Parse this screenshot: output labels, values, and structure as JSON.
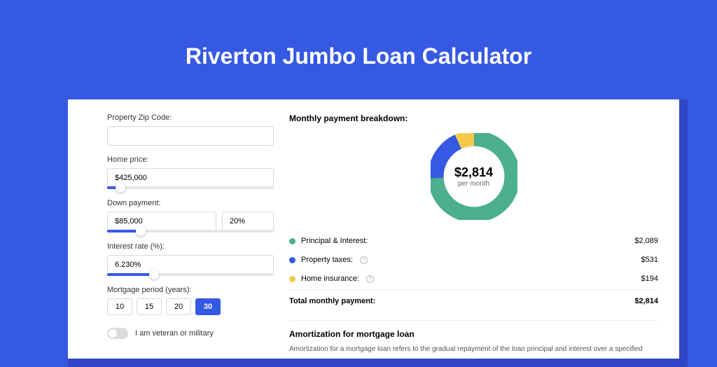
{
  "page": {
    "title": "Riverton Jumbo Loan Calculator",
    "bg_color": "#3659e3",
    "panel_shadow_color": "#3046c4",
    "panel_bg": "#ffffff"
  },
  "inputs": {
    "zip": {
      "label": "Property Zip Code:",
      "value": ""
    },
    "price": {
      "label": "Home price:",
      "value": "$425,000",
      "slider_pct": 8
    },
    "down": {
      "label": "Down payment:",
      "value": "$85,000",
      "pct_value": "20%",
      "slider_pct": 20
    },
    "rate": {
      "label": "Interest rate (%):",
      "value": "6.230%",
      "slider_pct": 28
    },
    "period": {
      "label": "Mortgage period (years):",
      "options": [
        "10",
        "15",
        "20",
        "30"
      ],
      "selected": "30"
    },
    "veteran": {
      "label": "I am veteran or military",
      "on": false
    }
  },
  "breakdown": {
    "title": "Monthly payment breakdown:",
    "center_value": "$2,814",
    "center_sub": "per month",
    "donut": {
      "circumference": 276.46,
      "stroke_width": 18,
      "segments": [
        {
          "name": "principal_interest",
          "label": "Principal & Interest:",
          "value": "$2,089",
          "color": "#4caf8f",
          "fraction": 0.742,
          "has_info": false
        },
        {
          "name": "property_taxes",
          "label": "Property taxes:",
          "value": "$531",
          "color": "#3659e3",
          "fraction": 0.189,
          "has_info": true
        },
        {
          "name": "home_insurance",
          "label": "Home insurance:",
          "value": "$194",
          "color": "#f4c94c",
          "fraction": 0.069,
          "has_info": true
        }
      ]
    },
    "total": {
      "label": "Total monthly payment:",
      "value": "$2,814"
    }
  },
  "amortization": {
    "title": "Amortization for mortgage loan",
    "body": "Amortization for a mortgage loan refers to the gradual repayment of the loan principal and interest over a specified"
  }
}
